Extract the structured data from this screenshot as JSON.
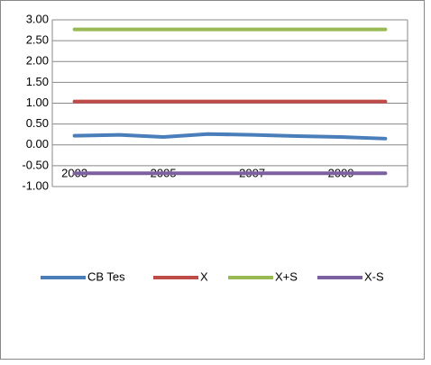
{
  "chart_data": {
    "type": "line",
    "categories": [
      "2003",
      null,
      "2005",
      null,
      "2007",
      null,
      "2009",
      null
    ],
    "series": [
      {
        "name": "CB Tes",
        "color": "#4a7ebb",
        "values": [
          0.22,
          0.24,
          0.19,
          0.26,
          0.24,
          0.21,
          0.19,
          0.15
        ]
      },
      {
        "name": "X",
        "color": "#be4b48",
        "values": [
          1.04,
          1.04,
          1.04,
          1.04,
          1.04,
          1.04,
          1.04,
          1.04
        ]
      },
      {
        "name": "X+S",
        "color": "#98b954",
        "values": [
          2.77,
          2.77,
          2.77,
          2.77,
          2.77,
          2.77,
          2.77,
          2.77
        ]
      },
      {
        "name": "X-S",
        "color": "#7d60a0",
        "values": [
          -0.68,
          -0.68,
          -0.68,
          -0.68,
          -0.68,
          -0.68,
          -0.68,
          -0.68
        ]
      }
    ],
    "ylim": [
      -1,
      3
    ],
    "yticks": [
      {
        "value": -1,
        "label": "-1.00"
      },
      {
        "value": -0.5,
        "label": "-0.50"
      },
      {
        "value": 0,
        "label": "0.00"
      },
      {
        "value": 0.5,
        "label": "0.50"
      },
      {
        "value": 1,
        "label": "1.00"
      },
      {
        "value": 1.5,
        "label": "1.50"
      },
      {
        "value": 2,
        "label": "2.00"
      },
      {
        "value": 2.5,
        "label": "2.50"
      },
      {
        "value": 3,
        "label": "3.00"
      }
    ],
    "grid": true,
    "legend": "bottom"
  }
}
